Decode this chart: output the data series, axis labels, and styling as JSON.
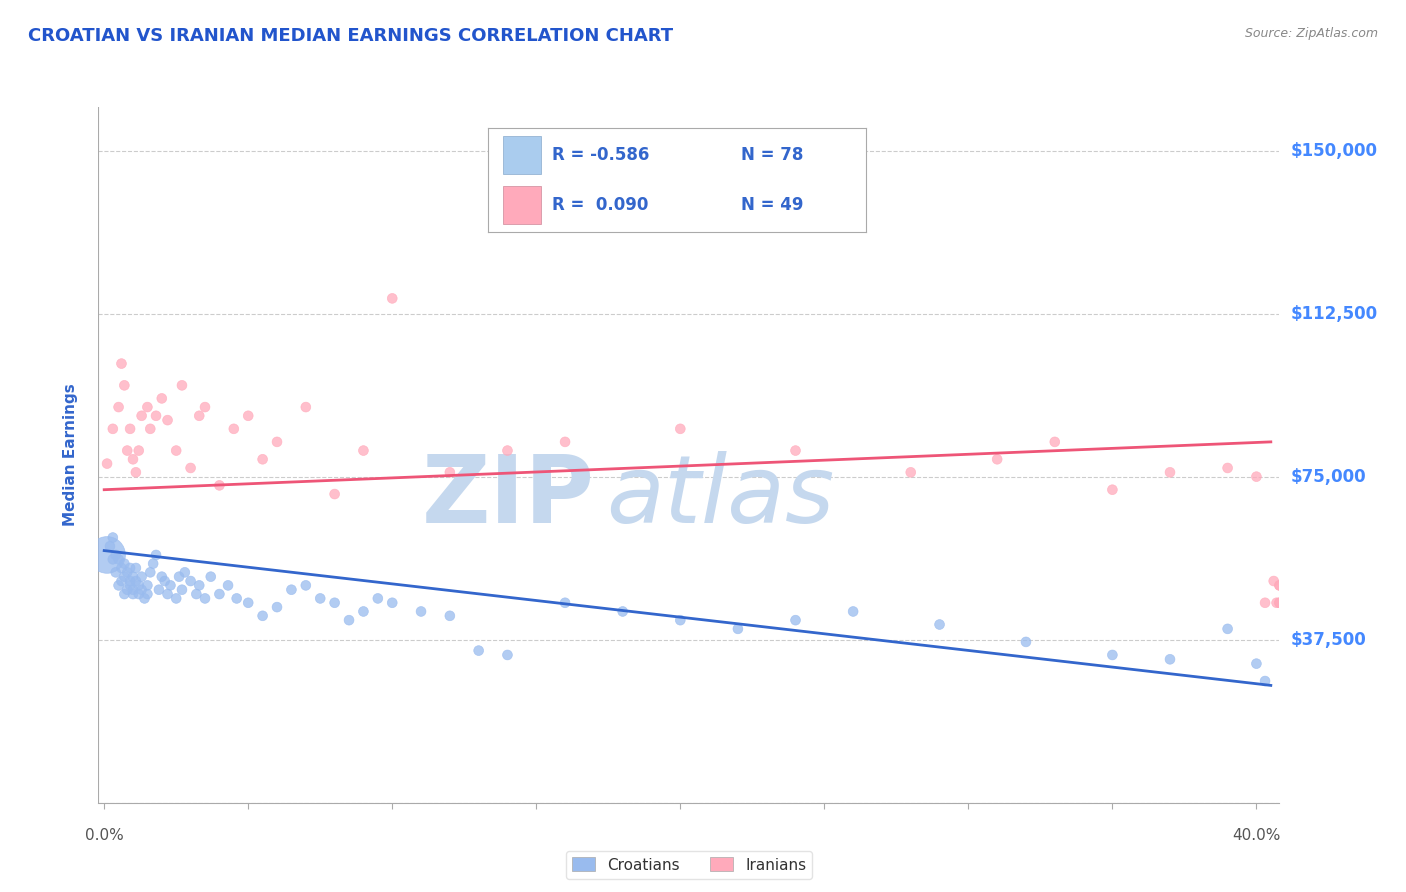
{
  "title": "CROATIAN VS IRANIAN MEDIAN EARNINGS CORRELATION CHART",
  "source": "Source: ZipAtlas.com",
  "ylabel": "Median Earnings",
  "title_color": "#2255cc",
  "source_color": "#888888",
  "axis_label_color": "#3366cc",
  "ytick_color": "#4488ff",
  "background_color": "#ffffff",
  "grid_color": "#cccccc",
  "watermark_zip": "ZIP",
  "watermark_atlas": "atlas",
  "watermark_color": "#c5d8ee",
  "legend_r1": "R = -0.586",
  "legend_n1": "N = 78",
  "legend_r2": "R =  0.090",
  "legend_n2": "N = 49",
  "legend_text_color": "#3366cc",
  "legend_color1": "#aaccee",
  "legend_color2": "#ffaabb",
  "croatian_color": "#99bbee",
  "iranian_color": "#ffaabb",
  "croatian_line_color": "#3366cc",
  "iranian_line_color": "#ee5577",
  "ylim": [
    0,
    160000
  ],
  "xlim": [
    -0.002,
    0.408
  ],
  "yticks": [
    0,
    37500,
    75000,
    112500,
    150000
  ],
  "ytick_labels": [
    "",
    "$37,500",
    "$75,000",
    "$112,500",
    "$150,000"
  ],
  "xticks": [
    0.0,
    0.05,
    0.1,
    0.15,
    0.2,
    0.25,
    0.3,
    0.35,
    0.4
  ],
  "xtick_labels": [
    "0.0%",
    "",
    "",
    "",
    "",
    "",
    "",
    "",
    "40.0%"
  ],
  "croatian_x": [
    0.001,
    0.002,
    0.003,
    0.003,
    0.004,
    0.004,
    0.005,
    0.005,
    0.006,
    0.006,
    0.007,
    0.007,
    0.007,
    0.008,
    0.008,
    0.009,
    0.009,
    0.009,
    0.01,
    0.01,
    0.01,
    0.011,
    0.011,
    0.012,
    0.012,
    0.013,
    0.013,
    0.014,
    0.015,
    0.015,
    0.016,
    0.017,
    0.018,
    0.019,
    0.02,
    0.021,
    0.022,
    0.023,
    0.025,
    0.026,
    0.027,
    0.028,
    0.03,
    0.032,
    0.033,
    0.035,
    0.037,
    0.04,
    0.043,
    0.046,
    0.05,
    0.055,
    0.06,
    0.065,
    0.07,
    0.075,
    0.08,
    0.085,
    0.09,
    0.095,
    0.1,
    0.11,
    0.12,
    0.13,
    0.14,
    0.16,
    0.18,
    0.2,
    0.22,
    0.24,
    0.26,
    0.29,
    0.32,
    0.35,
    0.37,
    0.39,
    0.4,
    0.403
  ],
  "croatian_y": [
    57000,
    59000,
    56000,
    61000,
    57000,
    53000,
    56000,
    50000,
    54000,
    51000,
    55000,
    48000,
    52000,
    53000,
    49000,
    54000,
    51000,
    50000,
    48000,
    52000,
    49000,
    54000,
    51000,
    50000,
    48000,
    52000,
    49000,
    47000,
    50000,
    48000,
    53000,
    55000,
    57000,
    49000,
    52000,
    51000,
    48000,
    50000,
    47000,
    52000,
    49000,
    53000,
    51000,
    48000,
    50000,
    47000,
    52000,
    48000,
    50000,
    47000,
    46000,
    43000,
    45000,
    49000,
    50000,
    47000,
    46000,
    42000,
    44000,
    47000,
    46000,
    44000,
    43000,
    35000,
    34000,
    46000,
    44000,
    42000,
    40000,
    42000,
    44000,
    41000,
    37000,
    34000,
    33000,
    40000,
    32000,
    28000
  ],
  "croatian_size": [
    700,
    50,
    50,
    50,
    50,
    50,
    50,
    50,
    50,
    50,
    50,
    50,
    50,
    50,
    50,
    50,
    50,
    50,
    50,
    50,
    50,
    50,
    50,
    50,
    50,
    50,
    50,
    50,
    50,
    50,
    50,
    50,
    50,
    50,
    50,
    50,
    50,
    50,
    50,
    50,
    50,
    50,
    50,
    50,
    50,
    50,
    50,
    50,
    50,
    50,
    50,
    50,
    50,
    50,
    50,
    50,
    50,
    50,
    50,
    50,
    50,
    50,
    50,
    50,
    50,
    50,
    50,
    50,
    50,
    50,
    50,
    50,
    50,
    50,
    50,
    50,
    50,
    50
  ],
  "iranian_x": [
    0.001,
    0.003,
    0.005,
    0.006,
    0.007,
    0.008,
    0.009,
    0.01,
    0.011,
    0.012,
    0.013,
    0.015,
    0.016,
    0.018,
    0.02,
    0.022,
    0.025,
    0.027,
    0.03,
    0.033,
    0.035,
    0.04,
    0.045,
    0.05,
    0.055,
    0.06,
    0.07,
    0.08,
    0.09,
    0.1,
    0.12,
    0.14,
    0.16,
    0.2,
    0.24,
    0.28,
    0.31,
    0.33,
    0.35,
    0.37,
    0.39,
    0.4,
    0.403,
    0.406,
    0.407,
    0.408,
    0.408,
    0.408,
    0.408
  ],
  "iranian_y": [
    78000,
    86000,
    91000,
    101000,
    96000,
    81000,
    86000,
    79000,
    76000,
    81000,
    89000,
    91000,
    86000,
    89000,
    93000,
    88000,
    81000,
    96000,
    77000,
    89000,
    91000,
    73000,
    86000,
    89000,
    79000,
    83000,
    91000,
    71000,
    81000,
    116000,
    76000,
    81000,
    83000,
    86000,
    81000,
    76000,
    79000,
    83000,
    72000,
    76000,
    77000,
    75000,
    46000,
    51000,
    46000,
    50000,
    46000,
    50000,
    46000
  ],
  "iranian_size": [
    50,
    50,
    50,
    50,
    50,
    50,
    50,
    50,
    50,
    50,
    50,
    50,
    50,
    50,
    50,
    50,
    50,
    50,
    50,
    50,
    50,
    50,
    50,
    50,
    50,
    50,
    50,
    50,
    50,
    50,
    50,
    50,
    50,
    50,
    50,
    50,
    50,
    50,
    50,
    50,
    50,
    50,
    50,
    50,
    50,
    50,
    50,
    50,
    50
  ],
  "croatian_trendline_x": [
    0.0,
    0.405
  ],
  "croatian_trendline_y": [
    58000,
    27000
  ],
  "iranian_trendline_x": [
    0.0,
    0.405
  ],
  "iranian_trendline_y": [
    72000,
    83000
  ]
}
